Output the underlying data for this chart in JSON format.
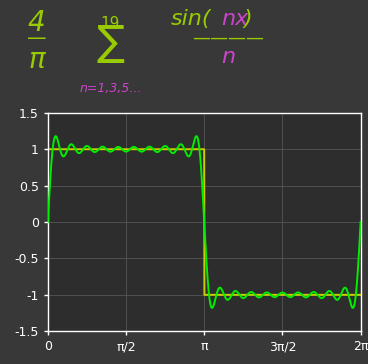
{
  "n_terms_max": 19,
  "xlim": [
    0,
    6.283185307179586
  ],
  "ylim": [
    -1.5,
    1.5
  ],
  "xticks": [
    0,
    1.5707963267948966,
    3.141592653589793,
    4.71238898038469,
    6.283185307179586
  ],
  "xtick_labels": [
    "0",
    "π/2",
    "π",
    "3π/2",
    "2π"
  ],
  "yticks": [
    -1.5,
    -1.0,
    -0.5,
    0,
    0.5,
    1.0,
    1.5
  ],
  "background_color": "#383838",
  "plot_bg_color": "#2d2d2d",
  "grid_color": "#555555",
  "fourier_color": "#00ee00",
  "square_color": "#cccc00",
  "axis_color": "#ffffff",
  "tick_color": "#ffffff",
  "title_color_green": "#99cc00",
  "title_color_magenta": "#cc44cc",
  "fourier_lw": 1.4,
  "square_lw": 1.4,
  "figsize": [
    3.68,
    3.64
  ],
  "dpi": 100
}
